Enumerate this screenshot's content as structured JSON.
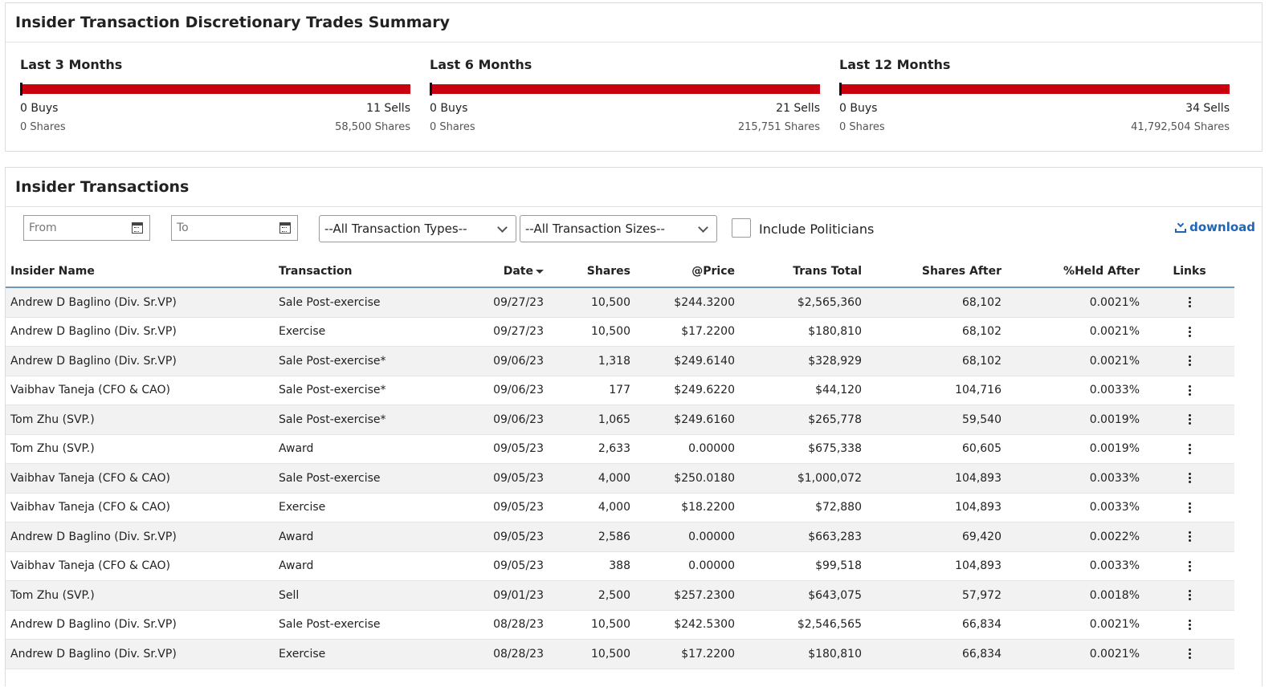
{
  "summary": {
    "title": "Insider Transaction Discretionary Trades Summary",
    "periods": [
      {
        "title": "Last 3 Months",
        "buys": "0 Buys",
        "sells": "11 Sells",
        "buy_shares": "0 Shares",
        "sell_shares": "58,500 Shares",
        "sell_fraction": 1.0
      },
      {
        "title": "Last 6 Months",
        "buys": "0 Buys",
        "sells": "21 Sells",
        "buy_shares": "0 Shares",
        "sell_shares": "215,751 Shares",
        "sell_fraction": 1.0
      },
      {
        "title": "Last 12 Months",
        "buys": "0 Buys",
        "sells": "34 Sells",
        "buy_shares": "0 Shares",
        "sell_shares": "41,792,504 Shares",
        "sell_fraction": 1.0
      }
    ],
    "colors": {
      "sell": "#c9000d",
      "buy": "#111111"
    }
  },
  "transactions": {
    "title": "Insider Transactions",
    "filters": {
      "from_placeholder": "From",
      "to_placeholder": "To",
      "type_select": "--All Transaction Types--",
      "size_select": "--All Transaction Sizes--",
      "include_politicians": "Include Politicians",
      "download": "download"
    },
    "columns": [
      "Insider Name",
      "Transaction",
      "Date",
      "Shares",
      "@Price",
      "Trans Total",
      "Shares After",
      "%Held After",
      "Links"
    ],
    "rows": [
      {
        "name": "Andrew D Baglino (Div. Sr.VP)",
        "transaction": "Sale Post-exercise",
        "date": "09/27/23",
        "shares": "10,500",
        "price": "$244.3200",
        "total": "$2,565,360",
        "after": "68,102",
        "held": "0.0021%"
      },
      {
        "name": "Andrew D Baglino (Div. Sr.VP)",
        "transaction": "Exercise",
        "date": "09/27/23",
        "shares": "10,500",
        "price": "$17.2200",
        "total": "$180,810",
        "after": "68,102",
        "held": "0.0021%"
      },
      {
        "name": "Andrew D Baglino (Div. Sr.VP)",
        "transaction": "Sale Post-exercise*",
        "date": "09/06/23",
        "shares": "1,318",
        "price": "$249.6140",
        "total": "$328,929",
        "after": "68,102",
        "held": "0.0021%"
      },
      {
        "name": "Vaibhav Taneja (CFO & CAO)",
        "transaction": "Sale Post-exercise*",
        "date": "09/06/23",
        "shares": "177",
        "price": "$249.6220",
        "total": "$44,120",
        "after": "104,716",
        "held": "0.0033%"
      },
      {
        "name": "Tom Zhu (SVP.)",
        "transaction": "Sale Post-exercise*",
        "date": "09/06/23",
        "shares": "1,065",
        "price": "$249.6160",
        "total": "$265,778",
        "after": "59,540",
        "held": "0.0019%"
      },
      {
        "name": "Tom Zhu (SVP.)",
        "transaction": "Award",
        "date": "09/05/23",
        "shares": "2,633",
        "price": "0.00000",
        "total": "$675,338",
        "after": "60,605",
        "held": "0.0019%"
      },
      {
        "name": "Vaibhav Taneja (CFO & CAO)",
        "transaction": "Sale Post-exercise",
        "date": "09/05/23",
        "shares": "4,000",
        "price": "$250.0180",
        "total": "$1,000,072",
        "after": "104,893",
        "held": "0.0033%"
      },
      {
        "name": "Vaibhav Taneja (CFO & CAO)",
        "transaction": "Exercise",
        "date": "09/05/23",
        "shares": "4,000",
        "price": "$18.2200",
        "total": "$72,880",
        "after": "104,893",
        "held": "0.0033%"
      },
      {
        "name": "Andrew D Baglino (Div. Sr.VP)",
        "transaction": "Award",
        "date": "09/05/23",
        "shares": "2,586",
        "price": "0.00000",
        "total": "$663,283",
        "after": "69,420",
        "held": "0.0022%"
      },
      {
        "name": "Vaibhav Taneja (CFO & CAO)",
        "transaction": "Award",
        "date": "09/05/23",
        "shares": "388",
        "price": "0.00000",
        "total": "$99,518",
        "after": "104,893",
        "held": "0.0033%"
      },
      {
        "name": "Tom Zhu (SVP.)",
        "transaction": "Sell",
        "date": "09/01/23",
        "shares": "2,500",
        "price": "$257.2300",
        "total": "$643,075",
        "after": "57,972",
        "held": "0.0018%"
      },
      {
        "name": "Andrew D Baglino (Div. Sr.VP)",
        "transaction": "Sale Post-exercise",
        "date": "08/28/23",
        "shares": "10,500",
        "price": "$242.5300",
        "total": "$2,546,565",
        "after": "66,834",
        "held": "0.0021%"
      },
      {
        "name": "Andrew D Baglino (Div. Sr.VP)",
        "transaction": "Exercise",
        "date": "08/28/23",
        "shares": "10,500",
        "price": "$17.2200",
        "total": "$180,810",
        "after": "66,834",
        "held": "0.0021%"
      }
    ]
  }
}
